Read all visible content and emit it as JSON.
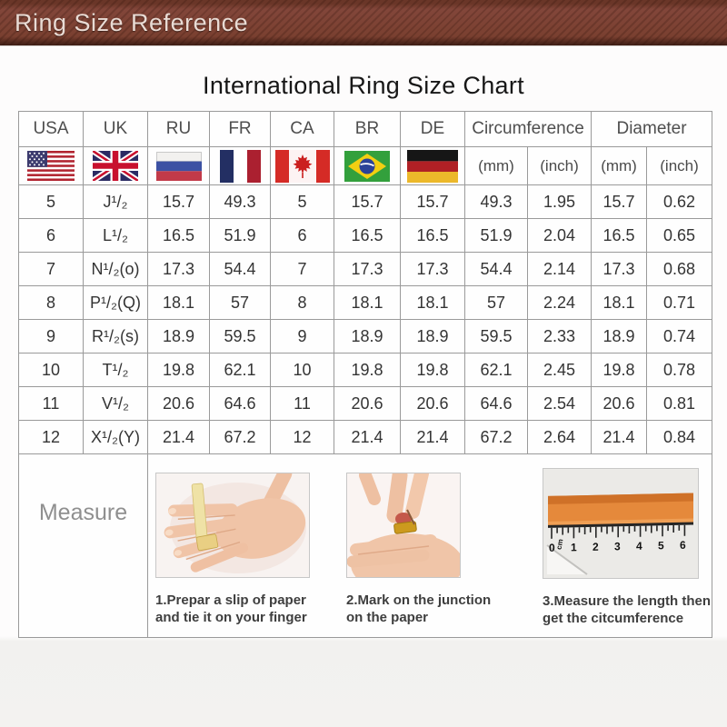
{
  "header_bar": {
    "title": "Ring Size Reference"
  },
  "page": {
    "title": "International Ring Size Chart"
  },
  "table": {
    "columns": [
      "USA",
      "UK",
      "RU",
      "FR",
      "CA",
      "BR",
      "DE"
    ],
    "group_headers": {
      "circumference": "Circumference",
      "diameter": "Diameter"
    },
    "unit_headers": {
      "mm": "(mm)",
      "inch": "(inch)"
    },
    "flags": [
      "usa-flag",
      "uk-flag",
      "ru-flag",
      "fr-flag",
      "ca-flag",
      "br-flag",
      "de-flag"
    ],
    "rows": [
      {
        "usa": "5",
        "uk": "J¹/₂",
        "ru": "15.7",
        "fr": "49.3",
        "ca": "5",
        "br": "15.7",
        "de": "15.7",
        "circ_mm": "49.3",
        "circ_inch": "1.95",
        "dia_mm": "15.7",
        "dia_inch": "0.62"
      },
      {
        "usa": "6",
        "uk": "L¹/₂",
        "ru": "16.5",
        "fr": "51.9",
        "ca": "6",
        "br": "16.5",
        "de": "16.5",
        "circ_mm": "51.9",
        "circ_inch": "2.04",
        "dia_mm": "16.5",
        "dia_inch": "0.65"
      },
      {
        "usa": "7",
        "uk": "N¹/₂(o)",
        "ru": "17.3",
        "fr": "54.4",
        "ca": "7",
        "br": "17.3",
        "de": "17.3",
        "circ_mm": "54.4",
        "circ_inch": "2.14",
        "dia_mm": "17.3",
        "dia_inch": "0.68"
      },
      {
        "usa": "8",
        "uk": "P¹/₂(Q)",
        "ru": "18.1",
        "fr": "57",
        "ca": "8",
        "br": "18.1",
        "de": "18.1",
        "circ_mm": "57",
        "circ_inch": "2.24",
        "dia_mm": "18.1",
        "dia_inch": "0.71"
      },
      {
        "usa": "9",
        "uk": "R¹/₂(s)",
        "ru": "18.9",
        "fr": "59.5",
        "ca": "9",
        "br": "18.9",
        "de": "18.9",
        "circ_mm": "59.5",
        "circ_inch": "2.33",
        "dia_mm": "18.9",
        "dia_inch": "0.74"
      },
      {
        "usa": "10",
        "uk": "T¹/₂",
        "ru": "19.8",
        "fr": "62.1",
        "ca": "10",
        "br": "19.8",
        "de": "19.8",
        "circ_mm": "62.1",
        "circ_inch": "2.45",
        "dia_mm": "19.8",
        "dia_inch": "0.78"
      },
      {
        "usa": "11",
        "uk": "V¹/₂",
        "ru": "20.6",
        "fr": "64.6",
        "ca": "11",
        "br": "20.6",
        "de": "20.6",
        "circ_mm": "64.6",
        "circ_inch": "2.54",
        "dia_mm": "20.6",
        "dia_inch": "0.81"
      },
      {
        "usa": "12",
        "uk": "X¹/₂(Y)",
        "ru": "21.4",
        "fr": "67.2",
        "ca": "12",
        "br": "21.4",
        "de": "21.4",
        "circ_mm": "67.2",
        "circ_inch": "2.64",
        "dia_mm": "21.4",
        "dia_inch": "0.84"
      }
    ],
    "cell_keys": [
      "usa",
      "uk",
      "ru",
      "fr",
      "ca",
      "br",
      "de",
      "circ_mm",
      "circ_inch",
      "dia_mm",
      "dia_inch"
    ]
  },
  "measure": {
    "label": "Measure",
    "steps": [
      {
        "illustration": "hand-with-paper-strip",
        "caption_line1": "1.Prepar a slip of paper",
        "caption_line2": "and tie it on your finger"
      },
      {
        "illustration": "hands-marking-paper",
        "caption_line1": "2.Mark on the junction",
        "caption_line2": "on the paper"
      },
      {
        "illustration": "ruler-measuring",
        "caption_line1": "3.Measure the length then",
        "caption_line2": "get the citcumference"
      }
    ],
    "ruler_labels": {
      "n0": "0",
      "cm": "cm",
      "n1": "1",
      "n2": "2",
      "n3": "3",
      "n4": "4",
      "n5": "5",
      "n6": "6"
    }
  }
}
